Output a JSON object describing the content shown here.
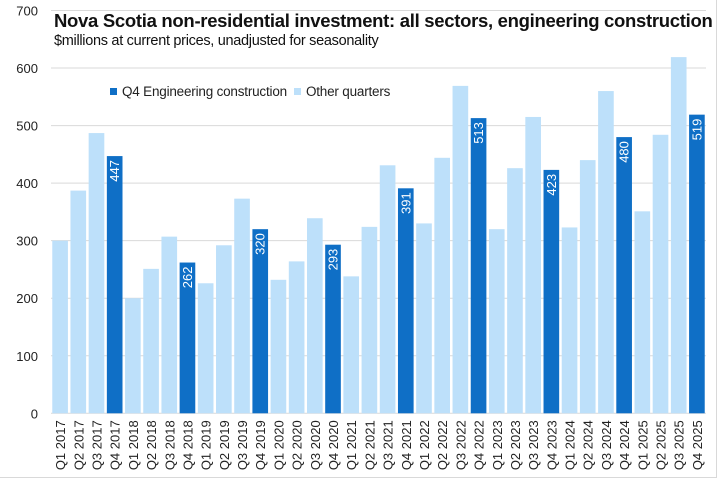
{
  "chart_data": {
    "type": "bar",
    "title": "Nova Scotia non-residential investment: all sectors, engineering construction",
    "subtitle": "$millions at current prices, unadjusted for seasonality",
    "xlabel": "",
    "ylabel": "",
    "ylim": [
      0,
      700
    ],
    "yticks": [
      0,
      100,
      200,
      300,
      400,
      500,
      600,
      700
    ],
    "grid": true,
    "legend_position": "top-left",
    "legend": [
      {
        "name": "Q4 Engineering construction",
        "color": "#0f6fc6"
      },
      {
        "name": "Other quarters",
        "color": "#bde0fa"
      }
    ],
    "categories": [
      "Q1 2017",
      "Q2 2017",
      "Q3 2017",
      "Q4 2017",
      "Q1 2018",
      "Q2 2018",
      "Q3 2018",
      "Q4 2018",
      "Q1 2019",
      "Q2 2019",
      "Q3 2019",
      "Q4 2019",
      "Q1 2020",
      "Q2 2020",
      "Q3 2020",
      "Q4 2020",
      "Q1 2021",
      "Q2 2021",
      "Q3 2021",
      "Q4 2021",
      "Q1 2022",
      "Q2 2022",
      "Q3 2022",
      "Q4 2022",
      "Q1 2023",
      "Q2 2023",
      "Q3 2023",
      "Q4 2023",
      "Q1 2024",
      "Q2 2024",
      "Q3 2024",
      "Q4 2024",
      "Q1 2025",
      "Q2 2025",
      "Q3 2025",
      "Q4 2025"
    ],
    "values": [
      300,
      387,
      487,
      447,
      200,
      251,
      307,
      262,
      226,
      292,
      373,
      320,
      232,
      264,
      339,
      293,
      238,
      324,
      431,
      391,
      330,
      444,
      569,
      513,
      320,
      426,
      515,
      423,
      323,
      440,
      560,
      480,
      351,
      484,
      619,
      519
    ],
    "highlight_series": "Q4 Engineering construction",
    "highlight_rule": "Q4",
    "data_labels": {
      "Q4 2017": "447",
      "Q4 2018": "262",
      "Q4 2019": "320",
      "Q4 2020": "293",
      "Q4 2021": "391",
      "Q4 2022": "513",
      "Q4 2023": "423",
      "Q4 2024": "480",
      "Q4 2025": "519"
    }
  },
  "colors": {
    "highlight": "#0f6fc6",
    "other": "#bde0fa",
    "grid": "#d9d9d9",
    "text": "#222222"
  }
}
